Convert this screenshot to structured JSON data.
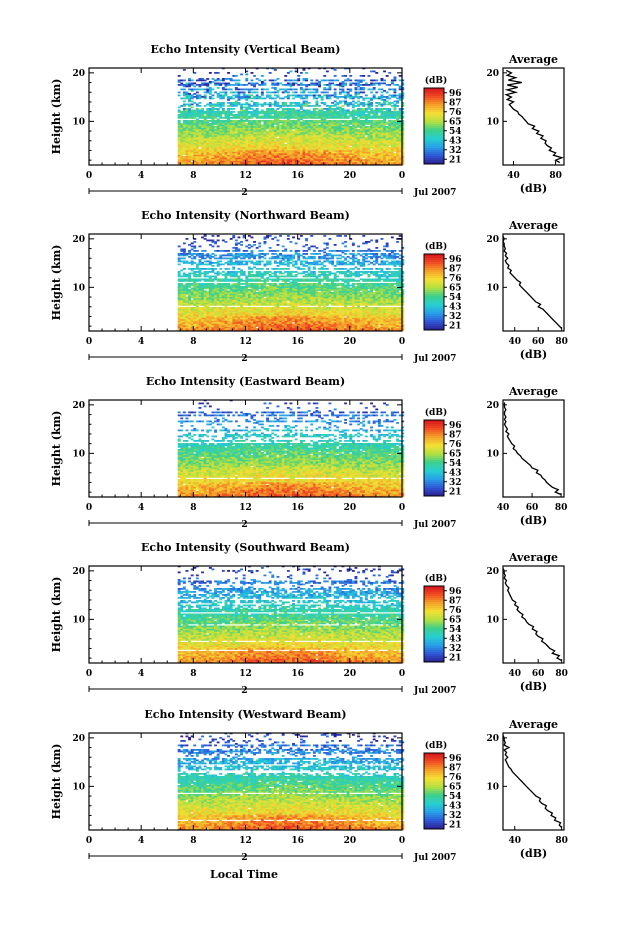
{
  "figure": {
    "xlabel": "Local Time",
    "date_label": "Jul 2007",
    "day_label": "2",
    "ylabel": "Height (km)",
    "colorbar_unit": "(dB)",
    "average_title": "Average",
    "average_xlabel": "(dB)"
  },
  "chart_data": [
    {
      "type": "heatmap",
      "title": "Echo Intensity (Vertical Beam)",
      "beam": "vertical",
      "x_ticks": [
        "0",
        "4",
        "8",
        "12",
        "16",
        "20",
        "0"
      ],
      "xlim": [
        0,
        24
      ],
      "y_ticks": [
        "10",
        "20"
      ],
      "ylim": [
        1,
        21
      ],
      "data_start_hour": 6.8,
      "data_end_hour": 24,
      "colorbar": {
        "ticks": [
          "96",
          "87",
          "76",
          "65",
          "54",
          "43",
          "32",
          "21"
        ],
        "range": [
          21,
          96
        ],
        "colors": [
          "#2c1f8f",
          "#2f58d8",
          "#27a0e8",
          "#27d0d0",
          "#3ed08a",
          "#b4e040",
          "#f4e033",
          "#f4a02a",
          "#f04a22",
          "#d4141c"
        ]
      },
      "average": {
        "xlim": [
          30,
          88
        ],
        "x_ticks": [
          "40",
          "80"
        ],
        "profile": [
          [
            84,
            1.5
          ],
          [
            80,
            2
          ],
          [
            86,
            2.5
          ],
          [
            78,
            3
          ],
          [
            80,
            3.5
          ],
          [
            74,
            4
          ],
          [
            76,
            4.5
          ],
          [
            72,
            5
          ],
          [
            70,
            5.5
          ],
          [
            71,
            6
          ],
          [
            66,
            6.5
          ],
          [
            68,
            7
          ],
          [
            62,
            7.5
          ],
          [
            64,
            8
          ],
          [
            58,
            8.5
          ],
          [
            60,
            9
          ],
          [
            54,
            9.5
          ],
          [
            52,
            10
          ],
          [
            50,
            10.5
          ],
          [
            48,
            11
          ],
          [
            45,
            11.5
          ],
          [
            44,
            12
          ],
          [
            40,
            12.5
          ],
          [
            38,
            13
          ],
          [
            36,
            13.5
          ],
          [
            40,
            14
          ],
          [
            34,
            14.5
          ],
          [
            38,
            15
          ],
          [
            33,
            15.5
          ],
          [
            42,
            16
          ],
          [
            34,
            16.5
          ],
          [
            44,
            17
          ],
          [
            34,
            17.5
          ],
          [
            48,
            18
          ],
          [
            35,
            18.5
          ],
          [
            42,
            19
          ],
          [
            34,
            19.5
          ],
          [
            38,
            20
          ],
          [
            33,
            20.5
          ]
        ]
      }
    },
    {
      "type": "heatmap",
      "title": "Echo Intensity (Northward Beam)",
      "beam": "northward",
      "x_ticks": [
        "0",
        "4",
        "8",
        "12",
        "16",
        "20",
        "0"
      ],
      "xlim": [
        0,
        24
      ],
      "y_ticks": [
        "10",
        "20"
      ],
      "ylim": [
        1,
        21
      ],
      "data_start_hour": 6.8,
      "data_end_hour": 24,
      "colorbar": {
        "ticks": [
          "96",
          "87",
          "76",
          "65",
          "54",
          "43",
          "32",
          "21"
        ],
        "range": [
          21,
          96
        ],
        "colors": [
          "#2c1f8f",
          "#2f58d8",
          "#27a0e8",
          "#27d0d0",
          "#3ed08a",
          "#b4e040",
          "#f4e033",
          "#f4a02a",
          "#f04a22",
          "#d4141c"
        ]
      },
      "average": {
        "xlim": [
          30,
          82
        ],
        "x_ticks": [
          "40",
          "60",
          "80"
        ],
        "profile": [
          [
            80,
            1.5
          ],
          [
            78,
            2
          ],
          [
            76,
            2.5
          ],
          [
            74,
            3
          ],
          [
            72,
            3.5
          ],
          [
            70,
            4
          ],
          [
            68,
            4.5
          ],
          [
            66,
            5
          ],
          [
            64,
            5.5
          ],
          [
            60,
            6
          ],
          [
            62,
            6.5
          ],
          [
            58,
            7
          ],
          [
            56,
            7.5
          ],
          [
            54,
            8
          ],
          [
            52,
            8.5
          ],
          [
            50,
            9
          ],
          [
            48,
            9.5
          ],
          [
            46,
            10
          ],
          [
            44,
            10.5
          ],
          [
            45,
            11
          ],
          [
            42,
            11.5
          ],
          [
            40,
            12
          ],
          [
            38,
            12.5
          ],
          [
            36,
            13
          ],
          [
            37,
            13.5
          ],
          [
            34,
            14
          ],
          [
            35,
            14.5
          ],
          [
            33,
            15
          ],
          [
            32,
            15.5
          ],
          [
            34,
            16
          ],
          [
            32,
            16.5
          ],
          [
            33,
            17
          ],
          [
            31,
            17.5
          ],
          [
            32,
            18
          ],
          [
            31,
            18.5
          ],
          [
            31,
            19
          ],
          [
            30,
            19.5
          ],
          [
            31,
            20
          ],
          [
            30,
            20.5
          ]
        ]
      }
    },
    {
      "type": "heatmap",
      "title": "Echo Intensity (Eastward Beam)",
      "beam": "eastward",
      "x_ticks": [
        "0",
        "4",
        "8",
        "12",
        "16",
        "20",
        "0"
      ],
      "xlim": [
        0,
        24
      ],
      "y_ticks": [
        "10",
        "20"
      ],
      "ylim": [
        1,
        21
      ],
      "data_start_hour": 6.8,
      "data_end_hour": 24,
      "colorbar": {
        "ticks": [
          "96",
          "87",
          "76",
          "65",
          "54",
          "43",
          "32",
          "21"
        ],
        "range": [
          21,
          96
        ],
        "colors": [
          "#2c1f8f",
          "#2f58d8",
          "#27a0e8",
          "#27d0d0",
          "#3ed08a",
          "#b4e040",
          "#f4e033",
          "#f4a02a",
          "#f04a22",
          "#d4141c"
        ]
      },
      "average": {
        "xlim": [
          40,
          82
        ],
        "x_ticks": [
          "40",
          "60",
          "80"
        ],
        "profile": [
          [
            80,
            1.5
          ],
          [
            76,
            2
          ],
          [
            78,
            2.5
          ],
          [
            74,
            3
          ],
          [
            72,
            3.5
          ],
          [
            70,
            4
          ],
          [
            69,
            4.5
          ],
          [
            67,
            5
          ],
          [
            66,
            5.5
          ],
          [
            63,
            6
          ],
          [
            64,
            6.5
          ],
          [
            60,
            7
          ],
          [
            59,
            7.5
          ],
          [
            57,
            8
          ],
          [
            55,
            8.5
          ],
          [
            53,
            9
          ],
          [
            52,
            9.5
          ],
          [
            50,
            10
          ],
          [
            49,
            10.5
          ],
          [
            47,
            11
          ],
          [
            48,
            11.5
          ],
          [
            46,
            12
          ],
          [
            45,
            12.5
          ],
          [
            44,
            13
          ],
          [
            43,
            13.5
          ],
          [
            44,
            14
          ],
          [
            42,
            14.5
          ],
          [
            43,
            15
          ],
          [
            42,
            15.5
          ],
          [
            41,
            16
          ],
          [
            42,
            16.5
          ],
          [
            41,
            17
          ],
          [
            42,
            17.5
          ],
          [
            41,
            18
          ],
          [
            41,
            18.5
          ],
          [
            42,
            19
          ],
          [
            41,
            19.5
          ],
          [
            41,
            20
          ],
          [
            41,
            20.5
          ]
        ]
      }
    },
    {
      "type": "heatmap",
      "title": "Echo Intensity (Southward Beam)",
      "beam": "southward",
      "x_ticks": [
        "0",
        "4",
        "8",
        "12",
        "16",
        "20",
        "0"
      ],
      "xlim": [
        0,
        24
      ],
      "y_ticks": [
        "10",
        "20"
      ],
      "ylim": [
        1,
        21
      ],
      "data_start_hour": 6.8,
      "data_end_hour": 24,
      "colorbar": {
        "ticks": [
          "96",
          "87",
          "76",
          "65",
          "54",
          "43",
          "32",
          "21"
        ],
        "range": [
          21,
          96
        ],
        "colors": [
          "#2c1f8f",
          "#2f58d8",
          "#27a0e8",
          "#27d0d0",
          "#3ed08a",
          "#b4e040",
          "#f4e033",
          "#f4a02a",
          "#f04a22",
          "#d4141c"
        ]
      },
      "average": {
        "xlim": [
          30,
          82
        ],
        "x_ticks": [
          "40",
          "60",
          "80"
        ],
        "profile": [
          [
            80,
            1.5
          ],
          [
            76,
            2
          ],
          [
            78,
            2.5
          ],
          [
            72,
            3
          ],
          [
            74,
            3.5
          ],
          [
            70,
            4
          ],
          [
            68,
            4.5
          ],
          [
            66,
            5
          ],
          [
            63,
            5.5
          ],
          [
            64,
            6
          ],
          [
            60,
            6.5
          ],
          [
            58,
            7
          ],
          [
            59,
            7.5
          ],
          [
            55,
            8
          ],
          [
            56,
            8.5
          ],
          [
            52,
            9
          ],
          [
            50,
            9.5
          ],
          [
            49,
            10
          ],
          [
            46,
            10.5
          ],
          [
            47,
            11
          ],
          [
            44,
            11.5
          ],
          [
            42,
            12
          ],
          [
            43,
            12.5
          ],
          [
            40,
            13
          ],
          [
            41,
            13.5
          ],
          [
            38,
            14
          ],
          [
            37,
            14.5
          ],
          [
            36,
            15
          ],
          [
            35,
            15.5
          ],
          [
            34,
            16
          ],
          [
            35,
            16.5
          ],
          [
            33,
            17
          ],
          [
            32,
            17.5
          ],
          [
            33,
            18
          ],
          [
            31,
            18.5
          ],
          [
            32,
            19
          ],
          [
            31,
            19.5
          ],
          [
            31,
            20
          ],
          [
            30,
            20.5
          ]
        ]
      }
    },
    {
      "type": "heatmap",
      "title": "Echo Intensity (Westward Beam)",
      "beam": "westward",
      "x_ticks": [
        "0",
        "4",
        "8",
        "12",
        "16",
        "20",
        "0"
      ],
      "xlim": [
        0,
        24
      ],
      "y_ticks": [
        "10",
        "20"
      ],
      "ylim": [
        1,
        21
      ],
      "data_start_hour": 6.8,
      "data_end_hour": 24,
      "colorbar": {
        "ticks": [
          "96",
          "87",
          "76",
          "65",
          "54",
          "43",
          "32",
          "21"
        ],
        "range": [
          21,
          96
        ],
        "colors": [
          "#2c1f8f",
          "#2f58d8",
          "#27a0e8",
          "#27d0d0",
          "#3ed08a",
          "#b4e040",
          "#f4e033",
          "#f4a02a",
          "#f04a22",
          "#d4141c"
        ]
      },
      "average": {
        "xlim": [
          30,
          82
        ],
        "x_ticks": [
          "40",
          "80"
        ],
        "profile": [
          [
            80,
            1.5
          ],
          [
            78,
            2
          ],
          [
            79,
            2.5
          ],
          [
            74,
            3
          ],
          [
            75,
            3.5
          ],
          [
            71,
            4
          ],
          [
            72,
            4.5
          ],
          [
            68,
            5
          ],
          [
            66,
            5.5
          ],
          [
            67,
            6
          ],
          [
            63,
            6.5
          ],
          [
            61,
            7
          ],
          [
            62,
            7.5
          ],
          [
            58,
            8
          ],
          [
            56,
            8.5
          ],
          [
            54,
            9
          ],
          [
            52,
            9.5
          ],
          [
            50,
            10
          ],
          [
            48,
            10.5
          ],
          [
            46,
            11
          ],
          [
            44,
            11.5
          ],
          [
            42,
            12
          ],
          [
            40,
            12.5
          ],
          [
            38,
            13
          ],
          [
            37,
            13.5
          ],
          [
            35,
            14
          ],
          [
            34,
            14.5
          ],
          [
            33,
            15
          ],
          [
            32,
            15.5
          ],
          [
            34,
            16
          ],
          [
            32,
            16.5
          ],
          [
            33,
            17
          ],
          [
            31,
            17.5
          ],
          [
            35,
            18
          ],
          [
            31,
            18.5
          ],
          [
            32,
            19
          ],
          [
            31,
            19.5
          ],
          [
            31,
            20
          ],
          [
            30,
            20.5
          ]
        ]
      }
    }
  ]
}
